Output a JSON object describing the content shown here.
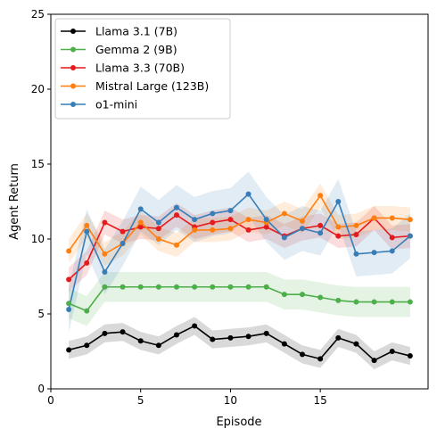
{
  "chart_data": {
    "type": "line",
    "title": "",
    "xlabel": "Episode",
    "ylabel": "Agent Return",
    "xlim": [
      0,
      21
    ],
    "ylim": [
      0,
      25
    ],
    "xticks": [
      0,
      5,
      10,
      15
    ],
    "yticks": [
      0,
      5,
      10,
      15,
      20,
      25
    ],
    "legend_position": "top-left",
    "grid": false,
    "x": [
      1,
      2,
      3,
      4,
      5,
      6,
      7,
      8,
      9,
      10,
      11,
      12,
      13,
      14,
      15,
      16,
      17,
      18,
      19,
      20
    ],
    "series": [
      {
        "name": "Llama 3.1 (7B)",
        "color": "#000000",
        "values": [
          2.6,
          2.9,
          3.7,
          3.8,
          3.2,
          2.9,
          3.6,
          4.2,
          3.3,
          3.4,
          3.5,
          3.7,
          3.0,
          2.3,
          2.0,
          3.4,
          3.0,
          1.9,
          2.5,
          2.2
        ],
        "band": 0.6
      },
      {
        "name": "Gemma 2 (9B)",
        "color": "#4daf4a",
        "values": [
          5.7,
          5.2,
          6.8,
          6.8,
          6.8,
          6.8,
          6.8,
          6.8,
          6.8,
          6.8,
          6.8,
          6.8,
          6.3,
          6.3,
          6.1,
          5.9,
          5.8,
          5.8,
          5.8,
          5.8
        ],
        "band": 1.0
      },
      {
        "name": "Llama 3.3 (70B)",
        "color": "#e41a1c",
        "values": [
          7.3,
          8.4,
          11.1,
          10.5,
          10.8,
          10.7,
          11.6,
          10.8,
          11.1,
          11.3,
          10.6,
          10.8,
          10.2,
          10.7,
          10.9,
          10.2,
          10.3,
          11.4,
          10.1,
          10.2
        ],
        "band": 0.8
      },
      {
        "name": "Mistral Large (123B)",
        "color": "#ff7f0e",
        "values": [
          9.2,
          10.9,
          9.0,
          9.7,
          11.1,
          10.0,
          9.6,
          10.6,
          10.6,
          10.7,
          11.3,
          11.1,
          11.7,
          11.2,
          12.9,
          10.8,
          10.9,
          11.4,
          11.4,
          11.3
        ],
        "band": 0.8
      },
      {
        "name": "o1-mini",
        "color": "#377eb8",
        "values": [
          5.3,
          10.5,
          7.8,
          9.7,
          12.0,
          11.1,
          12.1,
          11.3,
          11.7,
          11.9,
          13.0,
          11.3,
          10.1,
          10.7,
          10.4,
          12.5,
          9.0,
          9.1,
          9.2,
          10.2
        ],
        "band": 1.5
      }
    ]
  }
}
